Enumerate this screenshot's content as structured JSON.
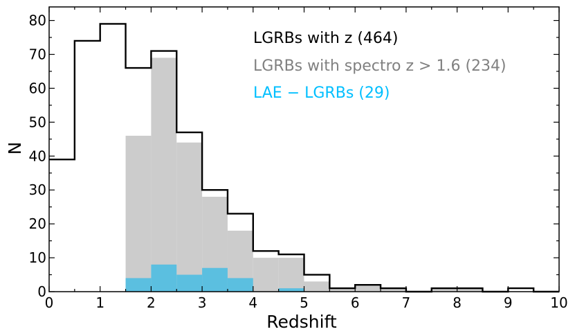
{
  "chart_data": {
    "type": "bar",
    "xlabel": "Redshift",
    "ylabel": "N",
    "xlim": [
      0,
      10
    ],
    "ylim": [
      0,
      84
    ],
    "xticks": [
      0,
      1,
      2,
      3,
      4,
      5,
      6,
      7,
      8,
      9,
      10
    ],
    "yticks": [
      0,
      10,
      20,
      30,
      40,
      50,
      60,
      70,
      80
    ],
    "grid": false,
    "legend_position": "top-right",
    "bin_edges": [
      0,
      0.5,
      1,
      1.5,
      2,
      2.5,
      3,
      3.5,
      4,
      4.5,
      5,
      5.5,
      6,
      6.5,
      7,
      7.5,
      8,
      8.5,
      9,
      9.5,
      10
    ],
    "series": [
      {
        "name": "LGRBs with z (464)",
        "style": "step",
        "color": "#000000",
        "values": [
          39,
          74,
          79,
          66,
          71,
          47,
          30,
          23,
          12,
          11,
          5,
          1,
          2,
          1,
          0,
          1,
          1,
          0,
          1,
          0
        ]
      },
      {
        "name": "LGRBs with spectro z > 1.6 (234)",
        "style": "filled",
        "color": "#cccccc",
        "legend_color": "#808080",
        "values": [
          0,
          0,
          0,
          46,
          69,
          44,
          28,
          18,
          10,
          10,
          3,
          1,
          2,
          1,
          0,
          1,
          1,
          0,
          0,
          0
        ]
      },
      {
        "name": "LAE − LGRBs (29)",
        "style": "filled",
        "color": "#5bbfe0",
        "legend_color": "#00bfff",
        "values": [
          0,
          0,
          0,
          4,
          8,
          5,
          7,
          4,
          0,
          1,
          0,
          0,
          0,
          0,
          0,
          0,
          0,
          0,
          0,
          0
        ]
      }
    ]
  }
}
